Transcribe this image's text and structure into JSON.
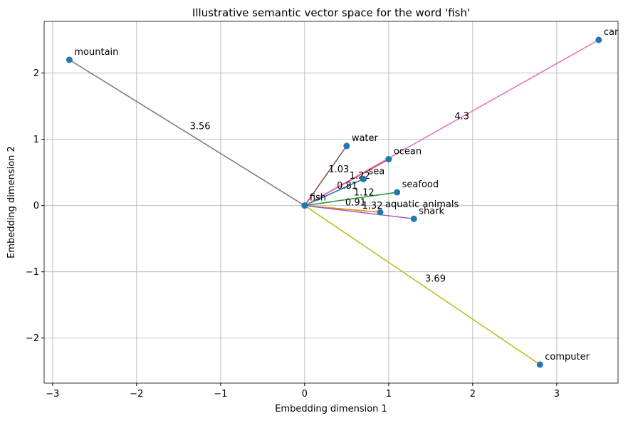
{
  "chart_data": {
    "type": "scatter",
    "title": "Illustrative semantic vector space for the word 'fish'",
    "xlabel": "Embedding dimension 1",
    "ylabel": "Embedding dimension 2",
    "point_color": "#1f77b4",
    "origin": {
      "label": "fish",
      "x": 0,
      "y": 0
    },
    "points": [
      {
        "label": "sea",
        "x": 0.7,
        "y": 0.4,
        "color": "#1f77b4",
        "distance": 0.81
      },
      {
        "label": "aquatic animals",
        "x": 0.9,
        "y": -0.1,
        "color": "#ff7f0e",
        "distance": 0.91
      },
      {
        "label": "seafood",
        "x": 1.1,
        "y": 0.2,
        "color": "#2ca02c",
        "distance": 1.12
      },
      {
        "label": "ocean",
        "x": 1.0,
        "y": 0.7,
        "color": "#d62728",
        "distance": 1.22
      },
      {
        "label": "shark",
        "x": 1.3,
        "y": -0.2,
        "color": "#9467bd",
        "distance": 1.32
      },
      {
        "label": "water",
        "x": 0.5,
        "y": 0.9,
        "color": "#8c564b",
        "distance": 1.03
      },
      {
        "label": "car",
        "x": 3.5,
        "y": 2.5,
        "color": "#e377c2",
        "distance": 4.3
      },
      {
        "label": "mountain",
        "x": -2.8,
        "y": 2.2,
        "color": "#7f7f7f",
        "distance": 3.56
      },
      {
        "label": "computer",
        "x": 2.8,
        "y": -2.4,
        "color": "#bcbd22",
        "distance": 3.69
      }
    ],
    "xlim": [
      -3.1,
      3.73
    ],
    "ylim": [
      -2.68,
      2.78
    ],
    "xticks": [
      {
        "value": -3,
        "label": "−3"
      },
      {
        "value": -2,
        "label": "−2"
      },
      {
        "value": -1,
        "label": "−1"
      },
      0,
      1,
      2,
      3
    ],
    "yticks": [
      {
        "value": -2,
        "label": "−2"
      },
      {
        "value": -1,
        "label": "−1"
      },
      0,
      1,
      2
    ],
    "grid": true
  }
}
